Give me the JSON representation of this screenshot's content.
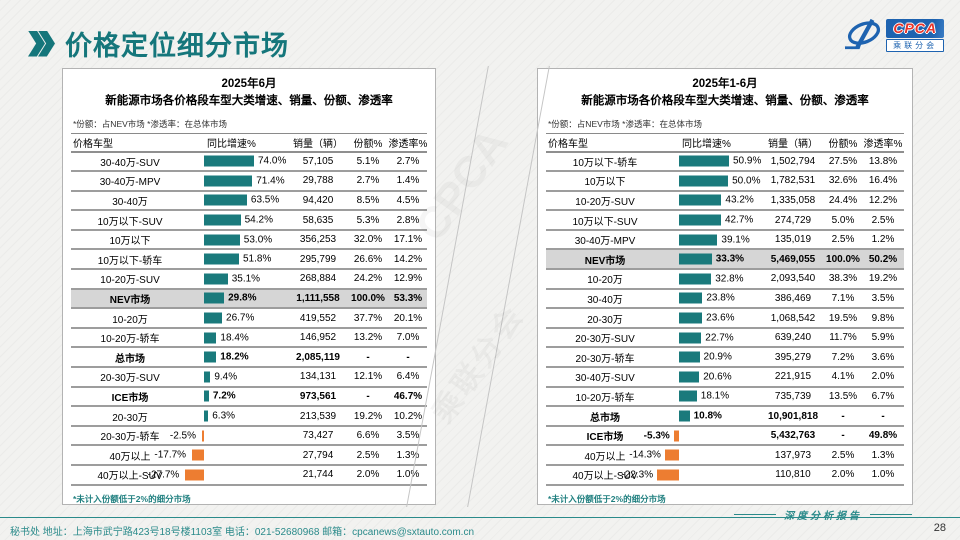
{
  "slide": {
    "title": "价格定位细分市场",
    "page_number": "28",
    "watermark_line1": "CPCA",
    "watermark_line2": "乘联分会",
    "footer_left": "秘书处  地址：上海市武宁路423号18号楼1103室  电话：021-52680968   邮箱：cpcanews@sxtauto.com.cn",
    "footer_right": "深度分析报告",
    "logo": {
      "name": "CPCA",
      "subname": "乘联分会"
    }
  },
  "colors": {
    "teal_bar": "#1a7a7c",
    "orange_bar": "#ed7d31",
    "title_teal": "#15767b",
    "highlight_row_bg": "#d6d6d6"
  },
  "chart_data": [
    {
      "type": "table",
      "title_line1": "2025年6月",
      "title_line2": "新能源市场各价格段车型大类增速、销量、份额、渗透率",
      "note": "*份额：占NEV市场  *渗透率：在总体市场",
      "columns": [
        "价格车型",
        "同比增速%",
        "销量（辆）",
        "份额%",
        "渗透率%"
      ],
      "footnote": "*未计入份额低于2%的细分市场",
      "bar_axis": "growth_pct",
      "rows": [
        {
          "label": "30-40万-SUV",
          "growth_pct": 74.0,
          "sales": "57,105",
          "share": "5.1%",
          "penetration": "2.7%",
          "style": "normal"
        },
        {
          "label": "30-40万-MPV",
          "growth_pct": 71.4,
          "sales": "29,788",
          "share": "2.7%",
          "penetration": "1.4%",
          "style": "normal"
        },
        {
          "label": "30-40万",
          "growth_pct": 63.5,
          "sales": "94,420",
          "share": "8.5%",
          "penetration": "4.5%",
          "style": "normal"
        },
        {
          "label": "10万以下-SUV",
          "growth_pct": 54.2,
          "sales": "58,635",
          "share": "5.3%",
          "penetration": "2.8%",
          "style": "normal"
        },
        {
          "label": "10万以下",
          "growth_pct": 53.0,
          "sales": "356,253",
          "share": "32.0%",
          "penetration": "17.1%",
          "style": "normal"
        },
        {
          "label": "10万以下-轿车",
          "growth_pct": 51.8,
          "sales": "295,799",
          "share": "26.6%",
          "penetration": "14.2%",
          "style": "normal"
        },
        {
          "label": "10-20万-SUV",
          "growth_pct": 35.1,
          "sales": "268,884",
          "share": "24.2%",
          "penetration": "12.9%",
          "style": "normal"
        },
        {
          "label": "NEV市场",
          "growth_pct": 29.8,
          "sales": "1,111,558",
          "share": "100.0%",
          "penetration": "53.3%",
          "style": "highlight"
        },
        {
          "label": "10-20万",
          "growth_pct": 26.7,
          "sales": "419,552",
          "share": "37.7%",
          "penetration": "20.1%",
          "style": "normal"
        },
        {
          "label": "10-20万-轿车",
          "growth_pct": 18.4,
          "sales": "146,952",
          "share": "13.2%",
          "penetration": "7.0%",
          "style": "normal"
        },
        {
          "label": "总市场",
          "growth_pct": 18.2,
          "sales": "2,085,119",
          "share": "-",
          "penetration": "-",
          "style": "bold"
        },
        {
          "label": "20-30万-SUV",
          "growth_pct": 9.4,
          "sales": "134,131",
          "share": "12.1%",
          "penetration": "6.4%",
          "style": "normal"
        },
        {
          "label": "ICE市场",
          "growth_pct": 7.2,
          "sales": "973,561",
          "share": "-",
          "penetration": "46.7%",
          "style": "bold"
        },
        {
          "label": "20-30万",
          "growth_pct": 6.3,
          "sales": "213,539",
          "share": "19.2%",
          "penetration": "10.2%",
          "style": "normal"
        },
        {
          "label": "20-30万-轿车",
          "growth_pct": -2.5,
          "sales": "73,427",
          "share": "6.6%",
          "penetration": "3.5%",
          "style": "normal"
        },
        {
          "label": "40万以上",
          "growth_pct": -17.7,
          "sales": "27,794",
          "share": "2.5%",
          "penetration": "1.3%",
          "style": "normal"
        },
        {
          "label": "40万以上-SUV",
          "growth_pct": -27.7,
          "sales": "21,744",
          "share": "2.0%",
          "penetration": "1.0%",
          "style": "normal"
        }
      ]
    },
    {
      "type": "table",
      "title_line1": "2025年1-6月",
      "title_line2": "新能源市场各价格段车型大类增速、销量、份额、渗透率",
      "note": "*份额：占NEV市场  *渗透率：在总体市场",
      "columns": [
        "价格车型",
        "同比增速%",
        "销量（辆）",
        "份额%",
        "渗透率%"
      ],
      "footnote": "*未计入份额低于2%的细分市场",
      "bar_axis": "growth_pct",
      "rows": [
        {
          "label": "10万以下-轿车",
          "growth_pct": 50.9,
          "sales": "1,502,794",
          "share": "27.5%",
          "penetration": "13.8%",
          "style": "normal"
        },
        {
          "label": "10万以下",
          "growth_pct": 50.0,
          "sales": "1,782,531",
          "share": "32.6%",
          "penetration": "16.4%",
          "style": "normal"
        },
        {
          "label": "10-20万-SUV",
          "growth_pct": 43.2,
          "sales": "1,335,058",
          "share": "24.4%",
          "penetration": "12.2%",
          "style": "normal"
        },
        {
          "label": "10万以下-SUV",
          "growth_pct": 42.7,
          "sales": "274,729",
          "share": "5.0%",
          "penetration": "2.5%",
          "style": "normal"
        },
        {
          "label": "30-40万-MPV",
          "growth_pct": 39.1,
          "sales": "135,019",
          "share": "2.5%",
          "penetration": "1.2%",
          "style": "normal"
        },
        {
          "label": "NEV市场",
          "growth_pct": 33.3,
          "sales": "5,469,055",
          "share": "100.0%",
          "penetration": "50.2%",
          "style": "highlight"
        },
        {
          "label": "10-20万",
          "growth_pct": 32.8,
          "sales": "2,093,540",
          "share": "38.3%",
          "penetration": "19.2%",
          "style": "normal"
        },
        {
          "label": "30-40万",
          "growth_pct": 23.8,
          "sales": "386,469",
          "share": "7.1%",
          "penetration": "3.5%",
          "style": "normal"
        },
        {
          "label": "20-30万",
          "growth_pct": 23.6,
          "sales": "1,068,542",
          "share": "19.5%",
          "penetration": "9.8%",
          "style": "normal"
        },
        {
          "label": "20-30万-SUV",
          "growth_pct": 22.7,
          "sales": "639,240",
          "share": "11.7%",
          "penetration": "5.9%",
          "style": "normal"
        },
        {
          "label": "20-30万-轿车",
          "growth_pct": 20.9,
          "sales": "395,279",
          "share": "7.2%",
          "penetration": "3.6%",
          "style": "normal"
        },
        {
          "label": "30-40万-SUV",
          "growth_pct": 20.6,
          "sales": "221,915",
          "share": "4.1%",
          "penetration": "2.0%",
          "style": "normal"
        },
        {
          "label": "10-20万-轿车",
          "growth_pct": 18.1,
          "sales": "735,739",
          "share": "13.5%",
          "penetration": "6.7%",
          "style": "normal"
        },
        {
          "label": "总市场",
          "growth_pct": 10.8,
          "sales": "10,901,818",
          "share": "-",
          "penetration": "-",
          "style": "bold"
        },
        {
          "label": "ICE市场",
          "growth_pct": -5.3,
          "sales": "5,432,763",
          "share": "-",
          "penetration": "49.8%",
          "style": "bold"
        },
        {
          "label": "40万以上",
          "growth_pct": -14.3,
          "sales": "137,973",
          "share": "2.5%",
          "penetration": "1.3%",
          "style": "normal"
        },
        {
          "label": "40万以上-SUV",
          "growth_pct": -22.3,
          "sales": "110,810",
          "share": "2.0%",
          "penetration": "1.0%",
          "style": "normal"
        }
      ]
    }
  ]
}
